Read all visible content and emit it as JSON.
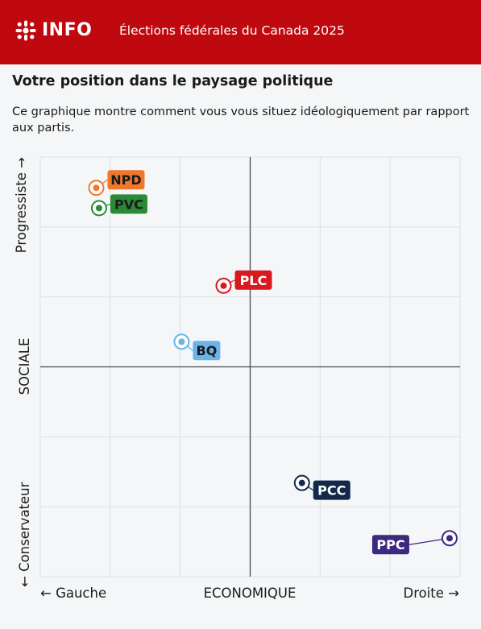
{
  "header": {
    "brand": "INFO",
    "title": "Élections fédérales du Canada 2025",
    "background": "#c0080f"
  },
  "page": {
    "title": "Votre position dans le paysage politique",
    "description": "Ce graphique montre comment vous vous situez idéologiquement par rapport aux partis."
  },
  "chart_data": {
    "type": "scatter",
    "xlabel": "ECONOMIQUE",
    "ylabel": "SOCIALE",
    "x_left_label": "← Gauche",
    "x_right_label": "Droite →",
    "y_top_label": "Progressiste →",
    "y_bottom_label": "← Conservateur",
    "xlim": [
      -3,
      3
    ],
    "ylim": [
      -3,
      3
    ],
    "grid": true,
    "points": [
      {
        "label": "NPD",
        "x": -2.2,
        "y": 2.56,
        "color": "#f0772b",
        "text_color": "#1a1a1a"
      },
      {
        "label": "PVC",
        "x": -2.16,
        "y": 2.27,
        "color": "#2a8a37",
        "text_color": "#1a1a1a"
      },
      {
        "label": "PLC",
        "x": -0.38,
        "y": 1.16,
        "color": "#d71920",
        "text_color": "#ffffff"
      },
      {
        "label": "BQ",
        "x": -0.98,
        "y": 0.36,
        "color": "#6ab4ea",
        "text_color": "#1a1a1a"
      },
      {
        "label": "PCC",
        "x": 0.74,
        "y": -1.66,
        "color": "#12294b",
        "text_color": "#ffffff"
      },
      {
        "label": "PPC",
        "x": 2.85,
        "y": -2.45,
        "color": "#3d2a80",
        "text_color": "#ffffff"
      }
    ]
  }
}
